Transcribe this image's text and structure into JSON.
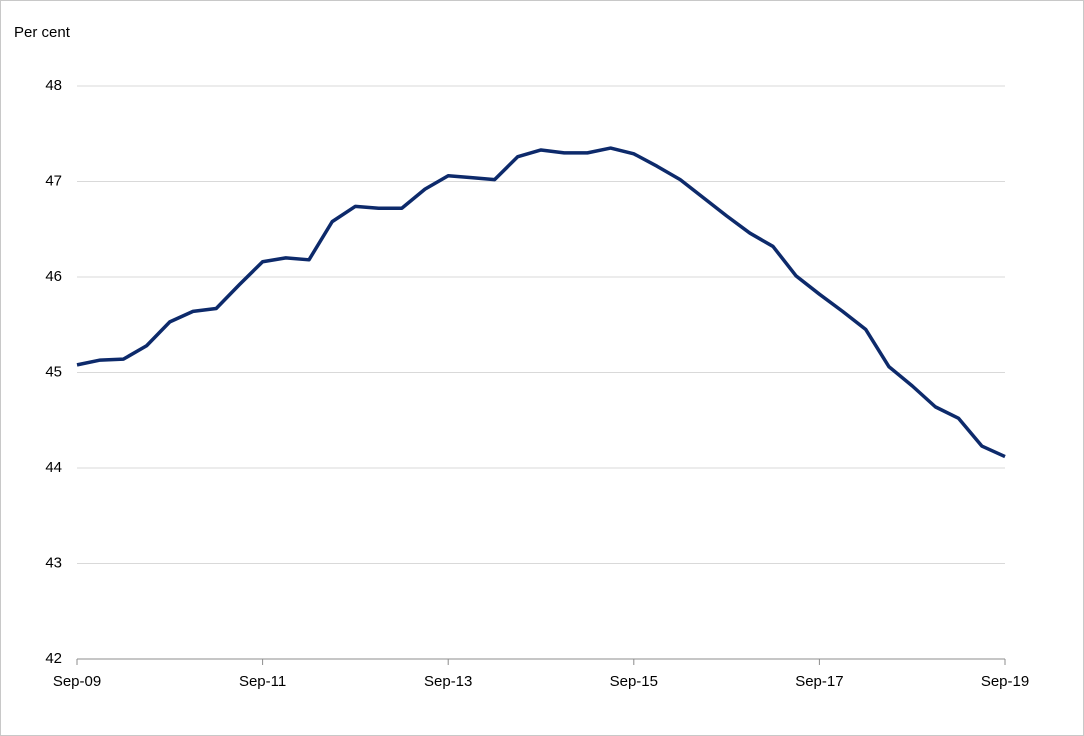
{
  "chart_data": {
    "type": "line",
    "y_label": "Per cent",
    "categories": [
      "Sep-09",
      null,
      null,
      null,
      null,
      null,
      null,
      null,
      "Sep-11",
      null,
      null,
      null,
      null,
      null,
      null,
      null,
      "Sep-13",
      null,
      null,
      null,
      null,
      null,
      null,
      null,
      "Sep-15",
      null,
      null,
      null,
      null,
      null,
      null,
      null,
      "Sep-17",
      null,
      null,
      null,
      null,
      null,
      null,
      null,
      "Sep-19"
    ],
    "series": [
      {
        "color": "#0d2a6b",
        "values": [
          45.08,
          45.13,
          45.14,
          45.28,
          45.53,
          45.64,
          45.67,
          45.92,
          46.16,
          46.2,
          46.18,
          46.58,
          46.74,
          46.72,
          46.72,
          46.92,
          47.06,
          47.04,
          47.02,
          47.26,
          47.33,
          47.3,
          47.3,
          47.35,
          47.29,
          47.16,
          47.02,
          46.83,
          46.64,
          46.46,
          46.32,
          46.01,
          45.82,
          45.64,
          45.45,
          45.06,
          44.86,
          44.64,
          44.52,
          44.23,
          44.12
        ]
      }
    ],
    "ylim": [
      42,
      48
    ],
    "yticks": [
      42,
      43,
      44,
      45,
      46,
      47,
      48
    ],
    "grid": true
  }
}
